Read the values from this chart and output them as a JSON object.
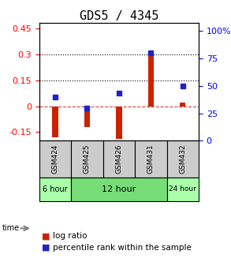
{
  "title": "GDS5 / 4345",
  "samples": [
    "GSM424",
    "GSM425",
    "GSM426",
    "GSM431",
    "GSM432"
  ],
  "log_ratio": [
    -0.18,
    -0.12,
    -0.19,
    0.32,
    0.02
  ],
  "percentile_rank": [
    40,
    30,
    43,
    80,
    50
  ],
  "left_ylim": [
    -0.2,
    0.48
  ],
  "left_yticks": [
    -0.15,
    0,
    0.15,
    0.3,
    0.45
  ],
  "right_ylim": [
    0,
    107
  ],
  "right_yticks": [
    0,
    25,
    50,
    75,
    100
  ],
  "right_yticklabels": [
    "0",
    "25",
    "50",
    "75",
    "100%"
  ],
  "hline_dotted": [
    0.15,
    0.3
  ],
  "hline_zero_dashed": 0,
  "time_groups": [
    {
      "label": "6 hour",
      "samples": [
        "GSM424"
      ],
      "color": "#aaffaa"
    },
    {
      "label": "12 hour",
      "samples": [
        "GSM425",
        "GSM426",
        "GSM431"
      ],
      "color": "#77ee77"
    },
    {
      "label": "24 hour",
      "samples": [
        "GSM432"
      ],
      "color": "#aaffaa"
    }
  ],
  "bar_color": "#cc2200",
  "point_color": "#2222cc",
  "bg_color": "#ffffff",
  "sample_bg": "#cccccc",
  "grid_color": "#000000",
  "title_fontsize": 11,
  "tick_fontsize": 8,
  "legend_fontsize": 7.5
}
